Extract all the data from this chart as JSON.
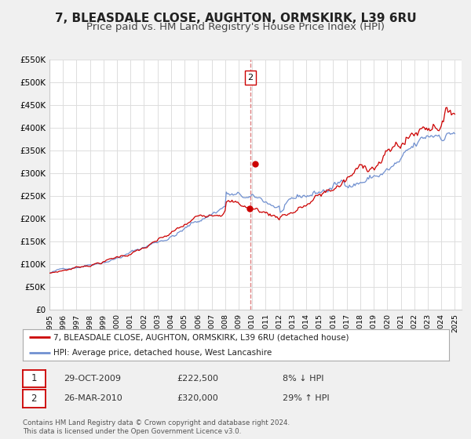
{
  "title": "7, BLEASDALE CLOSE, AUGHTON, ORMSKIRK, L39 6RU",
  "subtitle": "Price paid vs. HM Land Registry's House Price Index (HPI)",
  "ylim": [
    0,
    550000
  ],
  "xlim_start": 1995.0,
  "xlim_end": 2025.5,
  "yticks": [
    0,
    50000,
    100000,
    150000,
    200000,
    250000,
    300000,
    350000,
    400000,
    450000,
    500000,
    550000
  ],
  "ytick_labels": [
    "£0",
    "£50K",
    "£100K",
    "£150K",
    "£200K",
    "£250K",
    "£300K",
    "£350K",
    "£400K",
    "£450K",
    "£500K",
    "£550K"
  ],
  "xticks": [
    1995,
    1996,
    1997,
    1998,
    1999,
    2000,
    2001,
    2002,
    2003,
    2004,
    2005,
    2006,
    2007,
    2008,
    2009,
    2010,
    2011,
    2012,
    2013,
    2014,
    2015,
    2016,
    2017,
    2018,
    2019,
    2020,
    2021,
    2022,
    2023,
    2024,
    2025
  ],
  "sale1_x": 2009.83,
  "sale1_y": 222500,
  "sale1_label": "1",
  "sale1_date": "29-OCT-2009",
  "sale1_price": "£222,500",
  "sale1_hpi": "8% ↓ HPI",
  "sale2_x": 2010.24,
  "sale2_y": 320000,
  "sale2_label": "2",
  "sale2_date": "26-MAR-2010",
  "sale2_price": "£320,000",
  "sale2_hpi": "29% ↑ HPI",
  "vline_x": 2009.87,
  "vline_color": "#e08080",
  "sale_dot_color": "#cc0000",
  "hpi_line_color": "#7090d0",
  "price_line_color": "#cc0000",
  "legend1_label": "7, BLEASDALE CLOSE, AUGHTON, ORMSKIRK, L39 6RU (detached house)",
  "legend2_label": "HPI: Average price, detached house, West Lancashire",
  "footnote1": "Contains HM Land Registry data © Crown copyright and database right 2024.",
  "footnote2": "This data is licensed under the Open Government Licence v3.0.",
  "plot_bg_color": "#ffffff",
  "grid_color": "#dddddd",
  "title_fontsize": 11,
  "subtitle_fontsize": 9.5
}
